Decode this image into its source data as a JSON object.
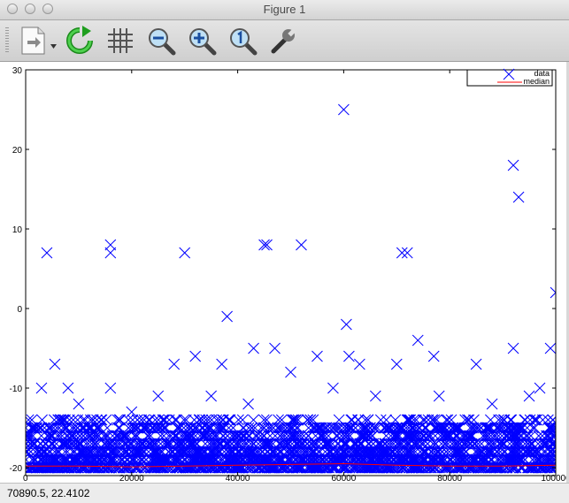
{
  "window": {
    "title": "Figure 1"
  },
  "toolbar": {
    "buttons": [
      {
        "name": "save-figure-button",
        "icon": "document-export-icon"
      },
      {
        "name": "refresh-button",
        "icon": "refresh-icon"
      },
      {
        "name": "grid-toggle-button",
        "icon": "grid-icon"
      },
      {
        "name": "zoom-out-button",
        "icon": "zoom-out-icon"
      },
      {
        "name": "zoom-in-button",
        "icon": "zoom-in-icon"
      },
      {
        "name": "zoom-reset-button",
        "icon": "zoom-reset-icon"
      },
      {
        "name": "settings-button",
        "icon": "wrench-icon"
      }
    ]
  },
  "status": {
    "coords": "70890.5,  22.4102"
  },
  "colors": {
    "data": "#0000ff",
    "median": "#ff0000",
    "axis": "#000000"
  },
  "chart_data": {
    "type": "scatter",
    "title": "",
    "xlabel": "",
    "ylabel": "",
    "xlim": [
      0,
      100000
    ],
    "ylim": [
      -21,
      30
    ],
    "xticks": [
      0,
      20000,
      40000,
      60000,
      80000,
      100000
    ],
    "xtick_labels": [
      "0",
      "20000",
      "40000",
      "60000",
      "80000",
      "100000"
    ],
    "yticks": [
      -20,
      -10,
      0,
      10,
      20,
      30
    ],
    "ytick_labels": [
      "-20",
      "-10",
      "0",
      "10",
      "20",
      "30"
    ],
    "legend": {
      "placement": "top-right",
      "entries": [
        "data",
        "median"
      ]
    },
    "series": [
      {
        "name": "data",
        "marker": "x",
        "points": [
          [
            4000,
            7
          ],
          [
            5500,
            -7
          ],
          [
            16000,
            8
          ],
          [
            16000,
            7
          ],
          [
            30000,
            7
          ],
          [
            32000,
            -6
          ],
          [
            38000,
            -1
          ],
          [
            45000,
            8
          ],
          [
            45500,
            8
          ],
          [
            52000,
            8
          ],
          [
            60000,
            25
          ],
          [
            60500,
            -2
          ],
          [
            61000,
            -6
          ],
          [
            71000,
            7
          ],
          [
            72000,
            7
          ],
          [
            74000,
            -4
          ],
          [
            92000,
            18
          ],
          [
            93000,
            14
          ],
          [
            92000,
            -5
          ],
          [
            100000,
            2
          ],
          [
            99000,
            -5
          ],
          [
            3000,
            -10
          ],
          [
            8000,
            -10
          ],
          [
            16000,
            -10
          ],
          [
            28000,
            -7
          ],
          [
            37000,
            -7
          ],
          [
            43000,
            -5
          ],
          [
            47000,
            -5
          ],
          [
            50000,
            -8
          ],
          [
            55000,
            -6
          ],
          [
            63000,
            -7
          ],
          [
            70000,
            -7
          ],
          [
            77000,
            -6
          ],
          [
            85000,
            -7
          ],
          [
            97000,
            -10
          ],
          [
            10000,
            -12
          ],
          [
            20000,
            -13
          ],
          [
            25000,
            -11
          ],
          [
            35000,
            -11
          ],
          [
            42000,
            -12
          ],
          [
            58000,
            -10
          ],
          [
            66000,
            -11
          ],
          [
            78000,
            -11
          ],
          [
            88000,
            -12
          ],
          [
            95000,
            -11
          ]
        ]
      },
      {
        "name": "median",
        "x": [
          0,
          10000,
          20000,
          30000,
          40000,
          50000,
          60000,
          70000,
          80000,
          90000,
          100000
        ],
        "y": [
          -19.8,
          -19.8,
          -19.9,
          -19.8,
          -19.7,
          -19.6,
          -19.5,
          -19.7,
          -19.8,
          -19.8,
          -19.7
        ]
      }
    ],
    "dense_band": {
      "x_range": [
        0,
        100000
      ],
      "y_range": [
        -20,
        -14
      ]
    }
  }
}
